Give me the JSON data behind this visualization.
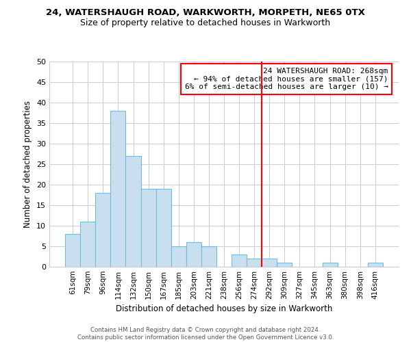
{
  "title": "24, WATERSHAUGH ROAD, WARKWORTH, MORPETH, NE65 0TX",
  "subtitle": "Size of property relative to detached houses in Warkworth",
  "xlabel": "Distribution of detached houses by size in Warkworth",
  "ylabel": "Number of detached properties",
  "bar_labels": [
    "61sqm",
    "79sqm",
    "96sqm",
    "114sqm",
    "132sqm",
    "150sqm",
    "167sqm",
    "185sqm",
    "203sqm",
    "221sqm",
    "238sqm",
    "256sqm",
    "274sqm",
    "292sqm",
    "309sqm",
    "327sqm",
    "345sqm",
    "363sqm",
    "380sqm",
    "398sqm",
    "416sqm"
  ],
  "bar_values": [
    8,
    11,
    18,
    38,
    27,
    19,
    19,
    5,
    6,
    5,
    0,
    3,
    2,
    2,
    1,
    0,
    0,
    1,
    0,
    0,
    1
  ],
  "bar_color": "#c8dff0",
  "bar_edge_color": "#7ab8d8",
  "vline_x": 12.5,
  "vline_color": "red",
  "annotation_text_line1": "24 WATERSHAUGH ROAD: 268sqm",
  "annotation_text_line2": "← 94% of detached houses are smaller (157)",
  "annotation_text_line3": "6% of semi-detached houses are larger (10) →",
  "ylim": [
    0,
    50
  ],
  "yticks": [
    0,
    5,
    10,
    15,
    20,
    25,
    30,
    35,
    40,
    45,
    50
  ],
  "footer_line1": "Contains HM Land Registry data © Crown copyright and database right 2024.",
  "footer_line2": "Contains public sector information licensed under the Open Government Licence v3.0.",
  "bg_color": "#ffffff",
  "grid_color": "#cccccc"
}
